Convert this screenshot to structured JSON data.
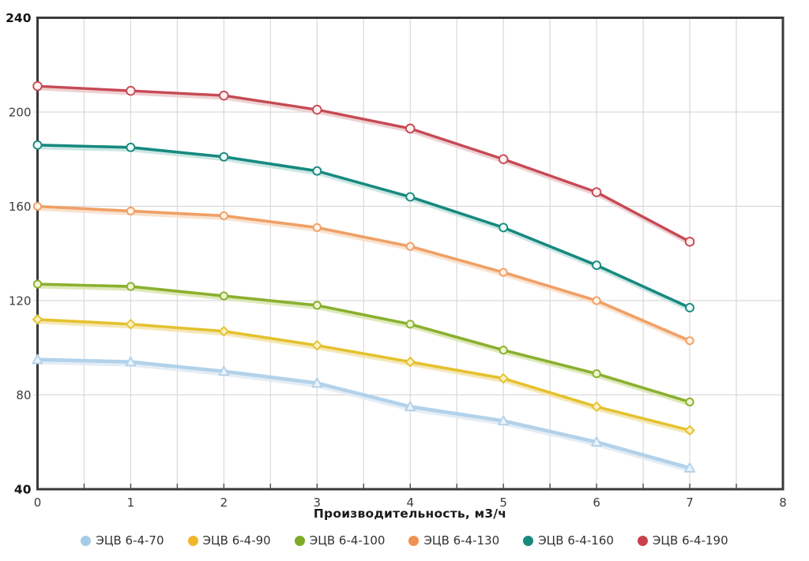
{
  "chart_data": {
    "type": "line",
    "title": "",
    "xlabel": "Производительность, м3/ч",
    "ylabel": "",
    "x": [
      0,
      1,
      2,
      3,
      4,
      5,
      6,
      7
    ],
    "xlim": [
      0,
      8
    ],
    "ylim": [
      40,
      240
    ],
    "x_tick_labels": [
      0,
      1,
      2,
      3,
      4,
      5,
      6,
      7,
      8
    ],
    "y_tick_labels": [
      240,
      200,
      160,
      120,
      80,
      40
    ],
    "y_bold_ticks": [
      240,
      40
    ],
    "y_grid_values": [
      200,
      160,
      120,
      80
    ],
    "x_grid_start": 0.5,
    "x_grid_step": 0.5,
    "grid": true,
    "legend_position": "bottom",
    "axis_color": "#3a3a3a",
    "grid_color": "#d9d9d9",
    "tick_color": "#4a4a4a",
    "tick_label_color": "#3c3c3c",
    "bold_label_color": "#141414",
    "series": [
      {
        "name": "ЭЦВ 6-4-70",
        "values": [
          95,
          94,
          90,
          85,
          75,
          69,
          60,
          49
        ],
        "color": "#b3d2ea",
        "legend_color": "#a6cbe4",
        "shadow": "#dfeaf3",
        "marker": "triangle",
        "marker_fill": "#eaf2f9",
        "marker_size": 6,
        "width": 4.6
      },
      {
        "name": "ЭЦВ 6-4-90",
        "values": [
          112,
          110,
          107,
          101,
          94,
          87,
          75,
          65
        ],
        "color": "#e4c12f",
        "legend_color": "#f0b62c",
        "shadow": "#f3e3a9",
        "marker": "diamond",
        "marker_fill": "#faf0c0",
        "marker_size": 5.5,
        "width": 3.6
      },
      {
        "name": "ЭЦВ 6-4-100",
        "values": [
          127,
          126,
          122,
          118,
          110,
          99,
          89,
          77
        ],
        "color": "#8ab02f",
        "legend_color": "#7cab25",
        "shadow": "#d8e5ae",
        "marker": "circle",
        "marker_fill": "#f0f5d3",
        "marker_size": 4.6,
        "width": 3.6
      },
      {
        "name": "ЭЦВ 6-4-130",
        "values": [
          160,
          158,
          156,
          151,
          143,
          132,
          120,
          103
        ],
        "color": "#efa066",
        "legend_color": "#ef9150",
        "shadow": "#f8ddc5",
        "marker": "circle",
        "marker_fill": "#fdf2e6",
        "marker_size": 4.6,
        "width": 3.6
      },
      {
        "name": "ЭЦВ 6-4-160",
        "values": [
          186,
          185,
          181,
          175,
          164,
          151,
          135,
          117
        ],
        "color": "#17897f",
        "legend_color": "#17897f",
        "shadow": "#c2e3df",
        "marker": "circle",
        "marker_fill": "#eefaf8",
        "marker_size": 5,
        "width": 3.6
      },
      {
        "name": "ЭЦВ 6-4-190",
        "values": [
          211,
          209,
          207,
          201,
          193,
          180,
          166,
          145
        ],
        "color": "#c64a54",
        "legend_color": "#c9414d",
        "shadow": "#ecc9cb",
        "marker": "circle",
        "marker_fill": "#fdf0f0",
        "marker_size": 5.3,
        "width": 3.4
      }
    ]
  }
}
